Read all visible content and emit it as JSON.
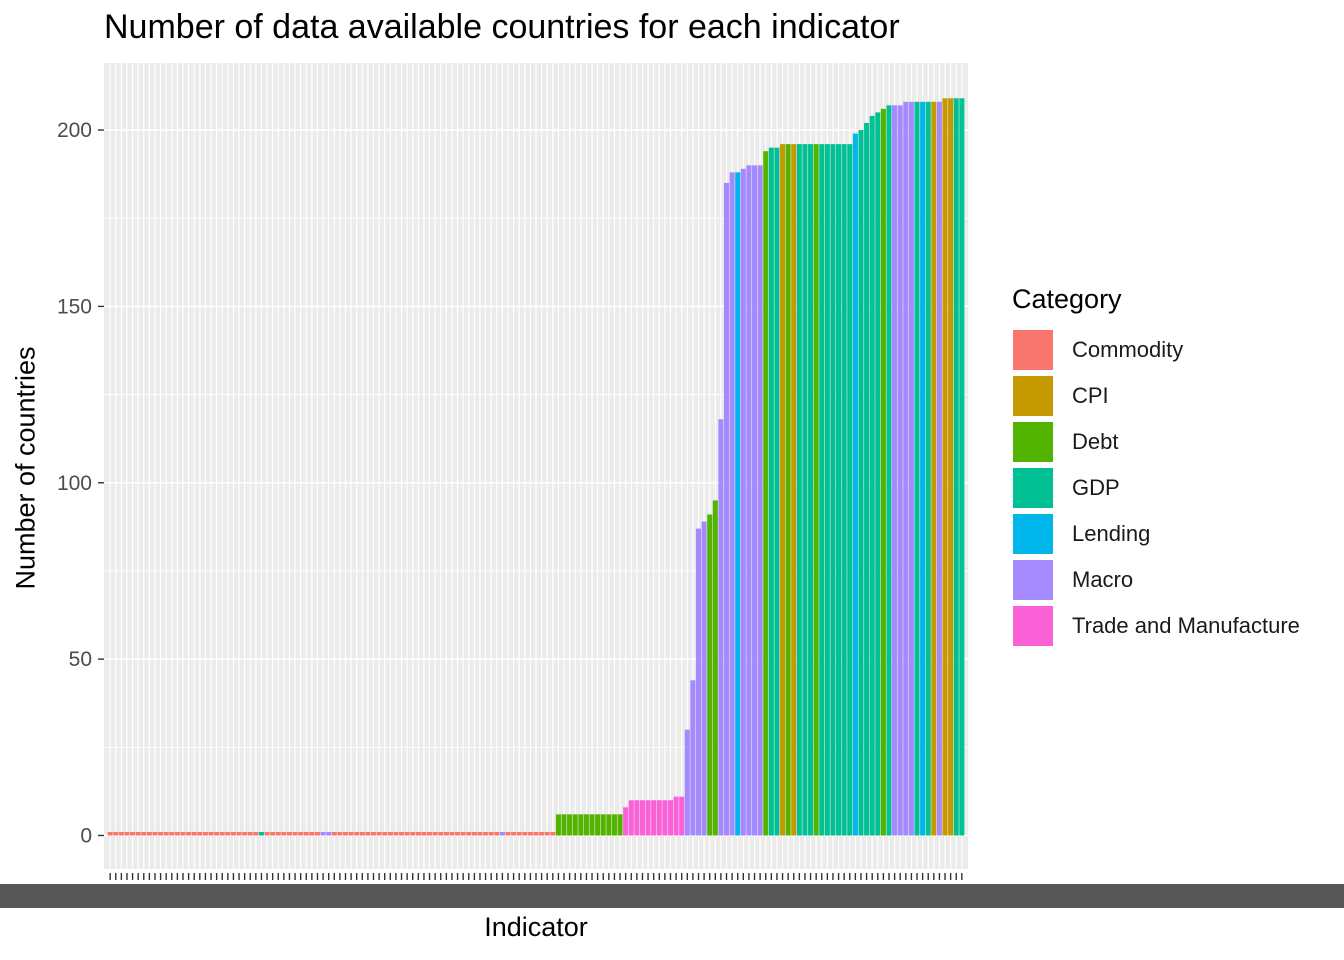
{
  "chart_data": {
    "type": "bar",
    "title": "Number of data available countries for each indicator",
    "xlabel": "Indicator",
    "ylabel": "Number of countries",
    "ylim": [
      -9.5,
      219
    ],
    "y_ticks": [
      0,
      50,
      100,
      150,
      200
    ],
    "y_tick_labels": [
      "0",
      "50",
      "100",
      "150",
      "200"
    ],
    "x_tick_labels": "illegible (overlapping indicator names)",
    "grid": true,
    "legend": {
      "title": "Category",
      "position": "right",
      "entries": [
        {
          "name": "Commodity",
          "color": "#F8766D"
        },
        {
          "name": "CPI",
          "color": "#C49A00"
        },
        {
          "name": "Debt",
          "color": "#53B400"
        },
        {
          "name": "GDP",
          "color": "#00C094"
        },
        {
          "name": "Lending",
          "color": "#00B6EB"
        },
        {
          "name": "Macro",
          "color": "#A58AFF"
        },
        {
          "name": "Trade and Manufacture",
          "color": "#FB61D7"
        }
      ]
    },
    "segments": [
      {
        "category": "Commodity",
        "count": 27,
        "value": 1
      },
      {
        "category": "GDP",
        "count": 1,
        "value": 1
      },
      {
        "category": "Commodity",
        "count": 10,
        "value": 1
      },
      {
        "category": "Macro",
        "count": 2,
        "value": 1
      },
      {
        "category": "Commodity",
        "count": 30,
        "value": 1
      },
      {
        "category": "Macro",
        "count": 1,
        "value": 1
      },
      {
        "category": "Commodity",
        "count": 9,
        "value": 1
      },
      {
        "category": "Debt",
        "count": 12,
        "value": 6
      },
      {
        "category": "Trade and Manufacture",
        "count": 1,
        "value": 8
      },
      {
        "category": "Trade and Manufacture",
        "count": 8,
        "value": 10
      },
      {
        "category": "Trade and Manufacture",
        "count": 2,
        "value": 11
      },
      {
        "category": "Macro",
        "count": 1,
        "value": 30
      },
      {
        "category": "Macro",
        "count": 1,
        "value": 44
      },
      {
        "category": "Macro",
        "count": 1,
        "value": 87
      },
      {
        "category": "Macro",
        "count": 1,
        "value": 89
      },
      {
        "category": "Debt",
        "count": 1,
        "value": 91
      },
      {
        "category": "Debt",
        "count": 1,
        "value": 95
      },
      {
        "category": "Macro",
        "count": 1,
        "value": 118
      },
      {
        "category": "Macro",
        "count": 1,
        "value": 185
      },
      {
        "category": "Macro",
        "count": 1,
        "value": 188
      },
      {
        "category": "Lending",
        "count": 1,
        "value": 188
      },
      {
        "category": "Macro",
        "count": 1,
        "value": 189
      },
      {
        "category": "Macro",
        "count": 3,
        "value": 190
      },
      {
        "category": "Debt",
        "count": 1,
        "value": 194
      },
      {
        "category": "GDP",
        "count": 2,
        "value": 195
      },
      {
        "category": "CPI",
        "count": 1,
        "value": 196
      },
      {
        "category": "Debt",
        "count": 1,
        "value": 196
      },
      {
        "category": "CPI",
        "count": 1,
        "value": 196
      },
      {
        "category": "GDP",
        "count": 3,
        "value": 196
      },
      {
        "category": "Debt",
        "count": 1,
        "value": 196
      },
      {
        "category": "GDP",
        "count": 6,
        "value": 196
      },
      {
        "category": "Lending",
        "count": 1,
        "value": 199
      },
      {
        "category": "GDP",
        "count": 1,
        "value": 200
      },
      {
        "category": "GDP",
        "count": 1,
        "value": 202
      },
      {
        "category": "GDP",
        "count": 1,
        "value": 204
      },
      {
        "category": "GDP",
        "count": 1,
        "value": 205
      },
      {
        "category": "Debt",
        "count": 1,
        "value": 206
      },
      {
        "category": "GDP",
        "count": 1,
        "value": 207
      },
      {
        "category": "Macro",
        "count": 2,
        "value": 207
      },
      {
        "category": "Macro",
        "count": 2,
        "value": 208
      },
      {
        "category": "GDP",
        "count": 1,
        "value": 208
      },
      {
        "category": "Lending",
        "count": 1,
        "value": 208
      },
      {
        "category": "GDP",
        "count": 1,
        "value": 208
      },
      {
        "category": "CPI",
        "count": 1,
        "value": 208
      },
      {
        "category": "Macro",
        "count": 1,
        "value": 208
      },
      {
        "category": "CPI",
        "count": 2,
        "value": 209
      },
      {
        "category": "GDP",
        "count": 2,
        "value": 209
      }
    ]
  }
}
